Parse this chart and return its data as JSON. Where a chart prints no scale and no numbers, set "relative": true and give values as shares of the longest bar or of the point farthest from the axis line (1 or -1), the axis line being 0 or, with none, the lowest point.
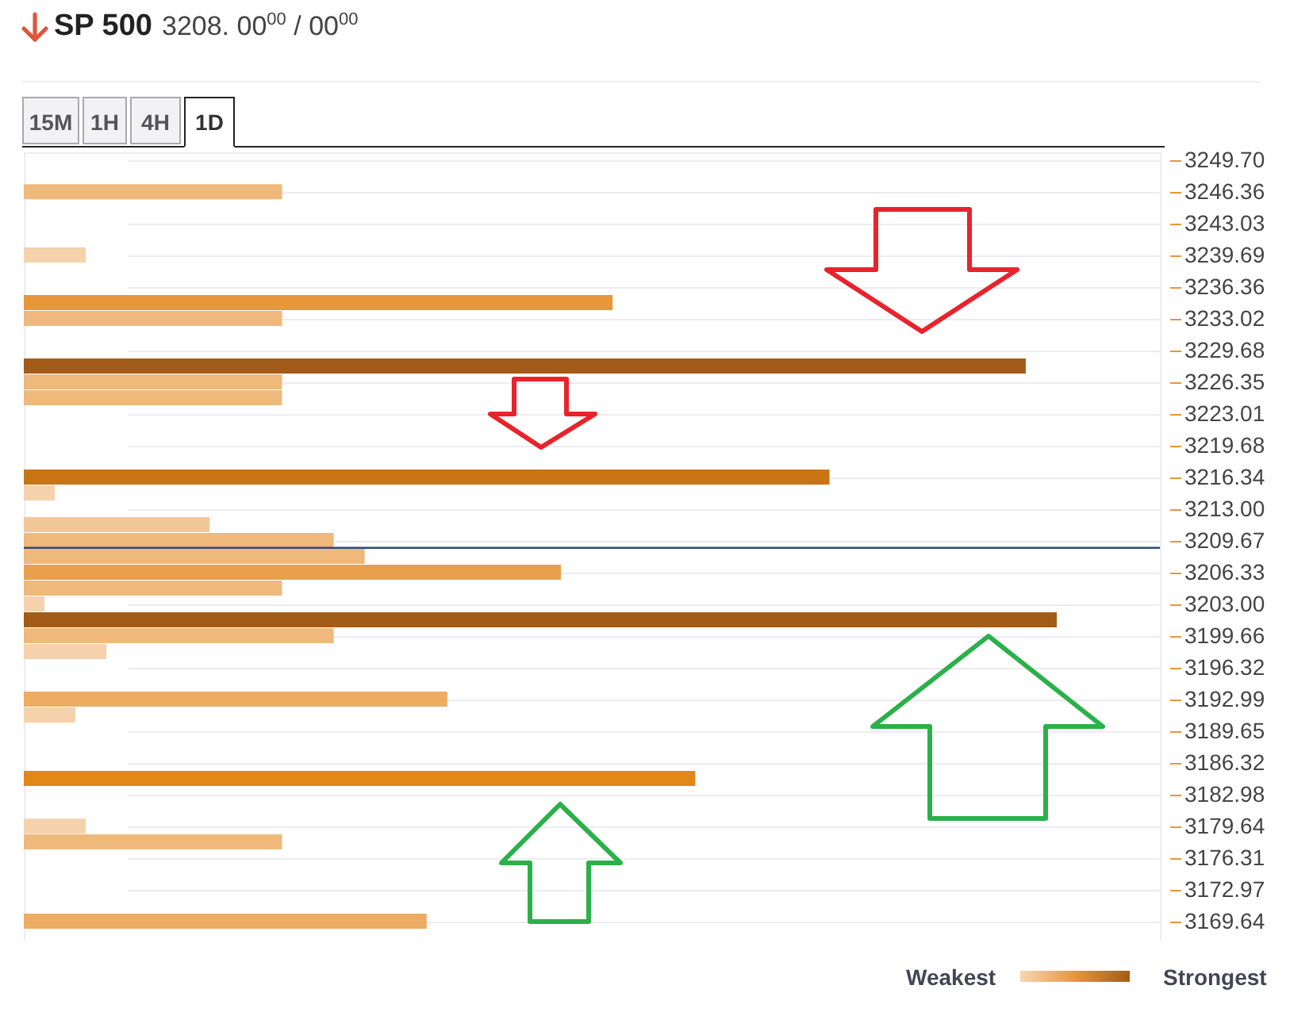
{
  "chart_data": {
    "type": "bar",
    "orientation": "horizontal",
    "relative": true,
    "title": "SP 500",
    "subtitle": "3208. 00$^{00}$ / 00$^{00}$",
    "x": [
      3246.36,
      3239.69,
      3234.69,
      3233.02,
      3228.02,
      3226.35,
      3224.68,
      3216.34,
      3214.67,
      3211.34,
      3209.67,
      3208.0,
      3206.33,
      3204.67,
      3203.0,
      3201.33,
      3199.66,
      3197.99,
      3192.99,
      3191.32,
      3184.65,
      3179.64,
      3177.98,
      3169.64
    ],
    "values": [
      0.25,
      0.06,
      0.57,
      0.25,
      0.97,
      0.25,
      0.25,
      0.78,
      0.03,
      0.18,
      0.3,
      0.33,
      0.52,
      0.25,
      0.02,
      1,
      0.3,
      0.08,
      0.41,
      0.05,
      0.65,
      0.06,
      0.25,
      0.39
    ],
    "colors": [
      "#efb97c",
      "#f5d2ab",
      "#e8963a",
      "#efb97c",
      "#a35c17",
      "#efb97c",
      "#efb97c",
      "#c97516",
      "#f5d2ab",
      "#f3c795",
      "#efb97c",
      "#efb97c",
      "#e9a04d",
      "#efb97c",
      "#f5d2ab",
      "#a35c17",
      "#efb97c",
      "#f5d2ab",
      "#eeac62",
      "#f5d2ab",
      "#e38717",
      "#f5d2ab",
      "#efb97c",
      "#eeac62"
    ],
    "ylim": [
      3167.6,
      3250.5
    ],
    "yticks": [
      {
        "value": 3249.7,
        "label": "3249.70"
      },
      3246.36,
      3243.03,
      3239.69,
      3236.36,
      3233.02,
      3229.68,
      3226.35,
      3223.01,
      3219.68,
      3216.34,
      {
        "value": 3213,
        "label": "3213.00"
      },
      3209.67,
      3206.33,
      {
        "value": 3203,
        "label": "3203.00"
      },
      3199.66,
      3196.32,
      3192.99,
      3189.65,
      3186.32,
      3182.98,
      3179.64,
      3176.31,
      3172.97,
      3169.64
    ],
    "grid": "y",
    "ref_lines": [
      {
        "axis": "y",
        "value": 3208.9,
        "color": "#2c4a7a"
      }
    ],
    "annotations": [
      "15M",
      "1H",
      "4H",
      "1D",
      "Weakest",
      "Strongest"
    ]
  }
}
